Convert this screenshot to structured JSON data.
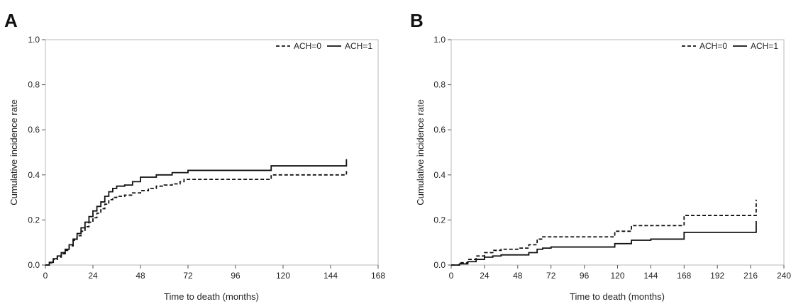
{
  "chart_data": [
    {
      "panel": "A",
      "type": "line",
      "step": true,
      "xlabel": "Time to death (months)",
      "ylabel": "Cumulative incidence rate",
      "xlim": [
        0,
        168
      ],
      "ylim": [
        0,
        1.0
      ],
      "xticks": [
        "0",
        "24",
        "48",
        "72",
        "96",
        "120",
        "144",
        "168"
      ],
      "yticks": [
        "0.0",
        "0.2",
        "0.4",
        "0.6",
        "0.8",
        "1.0"
      ],
      "grid": false,
      "legend_position": "top-right",
      "series": [
        {
          "name": "ACH=0",
          "style": "dashed",
          "x": [
            0,
            2,
            4,
            6,
            8,
            10,
            12,
            14,
            16,
            18,
            20,
            22,
            24,
            26,
            28,
            30,
            32,
            34,
            36,
            40,
            44,
            48,
            52,
            56,
            60,
            64,
            68,
            70,
            80,
            96,
            114,
            120,
            152,
            152
          ],
          "y": [
            0,
            0.01,
            0.025,
            0.035,
            0.05,
            0.065,
            0.085,
            0.11,
            0.13,
            0.15,
            0.17,
            0.19,
            0.21,
            0.23,
            0.25,
            0.27,
            0.29,
            0.3,
            0.305,
            0.31,
            0.32,
            0.33,
            0.34,
            0.35,
            0.355,
            0.36,
            0.37,
            0.38,
            0.38,
            0.38,
            0.4,
            0.4,
            0.4,
            0.42
          ]
        },
        {
          "name": "ACH=1",
          "style": "solid",
          "x": [
            0,
            2,
            4,
            6,
            8,
            10,
            12,
            14,
            16,
            18,
            20,
            22,
            24,
            26,
            28,
            30,
            32,
            34,
            36,
            40,
            44,
            48,
            56,
            60,
            64,
            68,
            72,
            96,
            114,
            120,
            152,
            152
          ],
          "y": [
            0,
            0.012,
            0.028,
            0.04,
            0.055,
            0.07,
            0.09,
            0.115,
            0.14,
            0.165,
            0.19,
            0.215,
            0.24,
            0.26,
            0.28,
            0.305,
            0.325,
            0.34,
            0.35,
            0.355,
            0.37,
            0.39,
            0.4,
            0.4,
            0.41,
            0.41,
            0.42,
            0.42,
            0.44,
            0.44,
            0.44,
            0.47
          ]
        }
      ]
    },
    {
      "panel": "B",
      "type": "line",
      "step": true,
      "xlabel": "Time to death (months)",
      "ylabel": "Cumulative incidence rate",
      "xlim": [
        0,
        240
      ],
      "ylim": [
        0,
        1.0
      ],
      "xticks": [
        "0",
        "24",
        "48",
        "72",
        "96",
        "120",
        "144",
        "168",
        "192",
        "216",
        "240"
      ],
      "yticks": [
        "0.0",
        "0.2",
        "0.4",
        "0.6",
        "0.8",
        "1.0"
      ],
      "grid": false,
      "legend_position": "top-right",
      "series": [
        {
          "name": "ACH=0",
          "style": "dashed",
          "x": [
            0,
            6,
            12,
            18,
            24,
            30,
            36,
            48,
            56,
            62,
            66,
            72,
            96,
            118,
            130,
            144,
            168,
            192,
            220,
            220
          ],
          "y": [
            0,
            0.01,
            0.025,
            0.04,
            0.055,
            0.065,
            0.07,
            0.075,
            0.09,
            0.115,
            0.125,
            0.125,
            0.125,
            0.15,
            0.175,
            0.175,
            0.22,
            0.22,
            0.22,
            0.29
          ]
        },
        {
          "name": "ACH=1",
          "style": "solid",
          "x": [
            0,
            6,
            12,
            18,
            24,
            30,
            36,
            48,
            56,
            62,
            66,
            72,
            96,
            118,
            130,
            144,
            168,
            192,
            220,
            220
          ],
          "y": [
            0,
            0.005,
            0.015,
            0.025,
            0.035,
            0.04,
            0.045,
            0.045,
            0.055,
            0.07,
            0.075,
            0.08,
            0.08,
            0.095,
            0.11,
            0.115,
            0.145,
            0.145,
            0.145,
            0.195
          ]
        }
      ]
    }
  ]
}
